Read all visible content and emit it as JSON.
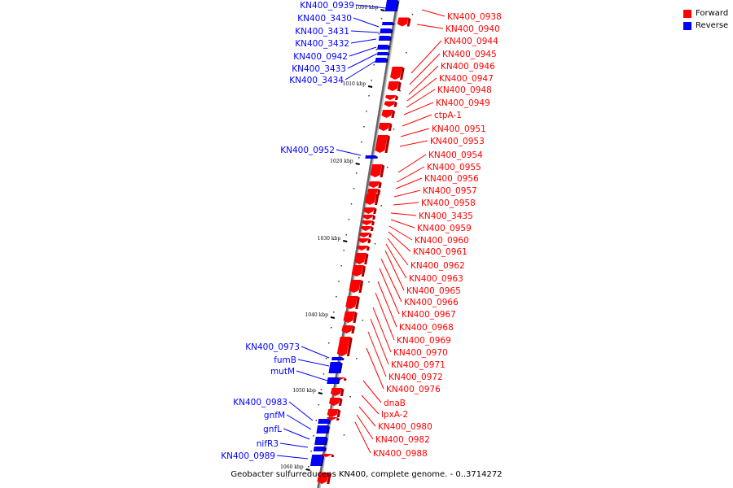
{
  "legend": {
    "forward": {
      "label": "Forward",
      "color": "#ff0000"
    },
    "reverse": {
      "label": "Reverse",
      "color": "#0000ff"
    }
  },
  "caption": "Geobacter sulfurreducens KN400, complete genome. - 0..3714272",
  "ticks": [
    "1000 kbp",
    "1010 kbp",
    "1020 kbp",
    "1030 kbp",
    "1040 kbp",
    "1050 kbp",
    "1060 kbp"
  ],
  "reverse_genes": [
    "KN400_0939",
    "KN400_3430",
    "KN400_3431",
    "KN400_3432",
    "KN400_0942",
    "KN400_3433",
    "KN400_3434",
    "KN400_0952",
    "KN400_0973",
    "fumB",
    "mutM",
    "KN400_0983",
    "gnfM",
    "gnfL",
    "nifR3",
    "KN400_0989"
  ],
  "forward_genes": [
    "KN400_0938",
    "KN400_0940",
    "KN400_0944",
    "KN400_0945",
    "KN400_0946",
    "KN400_0947",
    "KN400_0948",
    "KN400_0949",
    "ctpA-1",
    "KN400_0951",
    "KN400_0953",
    "KN400_0954",
    "KN400_0955",
    "KN400_0956",
    "KN400_0957",
    "KN400_0958",
    "KN400_3435",
    "KN400_0959",
    "KN400_0960",
    "KN400_0961",
    "KN400_0962",
    "KN400_0963",
    "KN400_0965",
    "KN400_0966",
    "KN400_0967",
    "KN400_0968",
    "KN400_0969",
    "KN400_0970",
    "KN400_0971",
    "KN400_0972",
    "KN400_0976",
    "dnaB",
    "lpxA-2",
    "KN400_0980",
    "KN400_0982",
    "KN400_0988"
  ]
}
